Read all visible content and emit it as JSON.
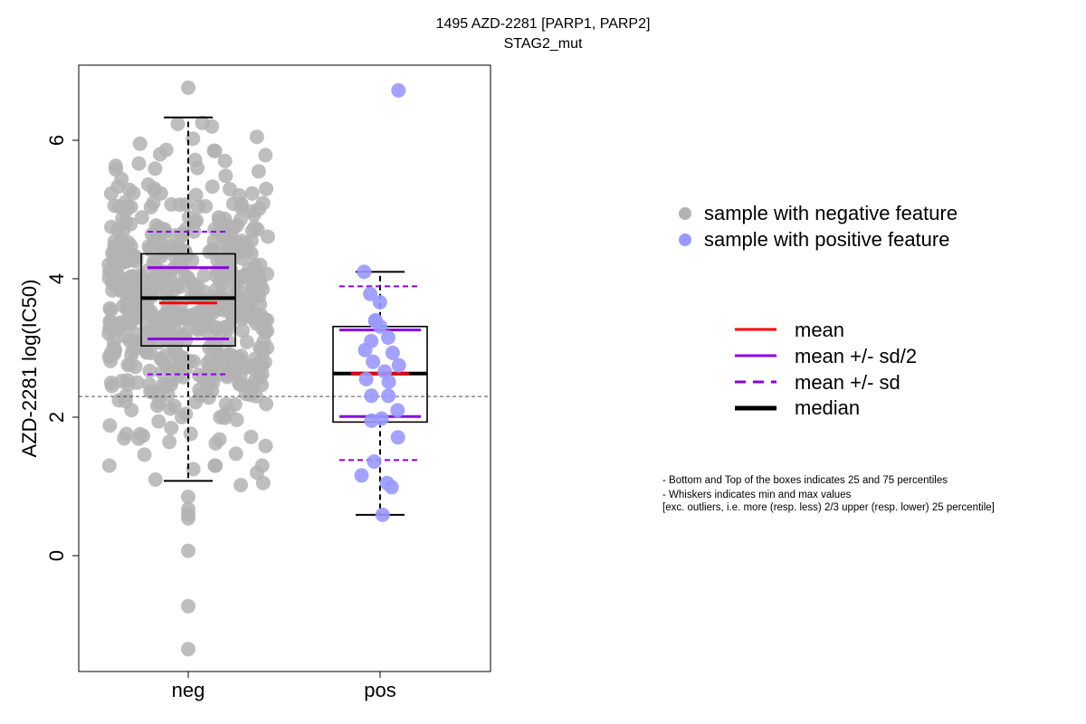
{
  "title": "1495 AZD-2281 [PARP1, PARP2]",
  "subtitle": "STAG2_mut",
  "chart_data": {
    "type": "box",
    "title": "1495 AZD-2281 [PARP1, PARP2]",
    "subtitle": "STAG2_mut",
    "xlabel": "",
    "ylabel": "AZD-2281 log(IC50)",
    "ylim": [
      -1.6,
      7.2
    ],
    "yticks": [
      0,
      2,
      4,
      6
    ],
    "reference_line": 2.3,
    "categories": [
      "neg",
      "pos"
    ],
    "colors": {
      "neg": "#b3b3b3",
      "pos": "#9999ff",
      "mean": "#ff0000",
      "sd": "#8a00e6",
      "median": "#000000"
    },
    "groups": [
      {
        "name": "neg",
        "whisker_low": 1.08,
        "q1": 3.03,
        "median": 3.72,
        "q3": 4.36,
        "whisker_high": 6.33,
        "mean": 3.65,
        "mean_plus_half_sd": 4.16,
        "mean_minus_half_sd": 3.13,
        "mean_plus_sd": 4.68,
        "mean_minus_sd": 2.62,
        "outliers": [
          6.76,
          0.85,
          0.67,
          0.6,
          0.54,
          0.07,
          -0.73,
          -1.35
        ]
      },
      {
        "name": "pos",
        "whisker_low": 0.59,
        "q1": 1.93,
        "median": 2.63,
        "q3": 3.31,
        "whisker_high": 4.1,
        "mean": 2.63,
        "mean_plus_half_sd": 3.26,
        "mean_minus_half_sd": 2.01,
        "mean_plus_sd": 3.89,
        "mean_minus_sd": 1.38,
        "outliers": [
          6.72
        ],
        "points": [
          6.72,
          4.1,
          3.78,
          3.66,
          3.4,
          3.39,
          3.31,
          3.15,
          3.1,
          2.97,
          2.93,
          2.8,
          2.75,
          2.66,
          2.55,
          2.51,
          2.31,
          2.31,
          2.1,
          1.98,
          1.95,
          1.71,
          1.36,
          1.16,
          1.05,
          0.99,
          0.59
        ]
      }
    ]
  },
  "legend": {
    "points": [
      {
        "label": "sample with negative feature",
        "color": "#b3b3b3"
      },
      {
        "label": "sample with positive feature",
        "color": "#9999ff"
      }
    ],
    "lines": [
      {
        "label": "mean",
        "color": "#ff0000",
        "style": "solid"
      },
      {
        "label": "mean +/- sd/2",
        "color": "#8a00e6",
        "style": "solid"
      },
      {
        "label": "mean +/- sd",
        "color": "#8a00e6",
        "style": "dashed"
      },
      {
        "label": "median",
        "color": "#000000",
        "style": "thick"
      }
    ]
  },
  "notes": [
    "- Bottom and Top of the boxes indicates 25 and 75 percentiles",
    "- Whiskers indicates min and max values",
    "[exc. outliers, i.e. more (resp. less) 2/3 upper (resp. lower) 25 percentile]"
  ]
}
